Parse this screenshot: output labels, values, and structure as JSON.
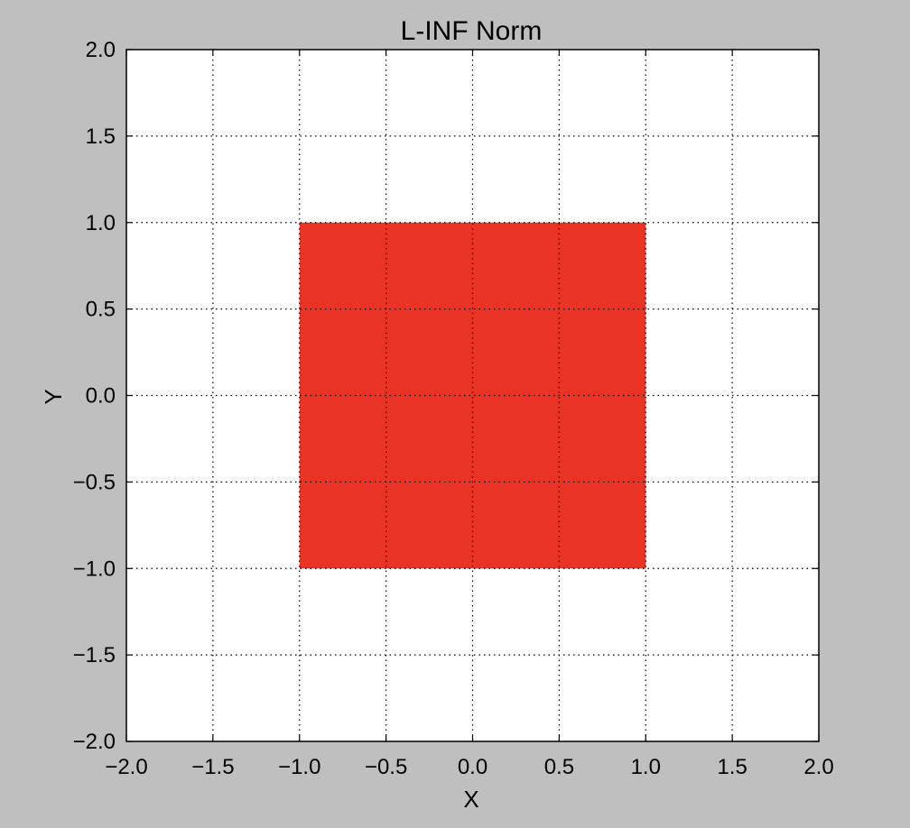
{
  "chart_data": {
    "type": "area",
    "title": "L-INF Norm",
    "xlabel": "X",
    "ylabel": "Y",
    "xlim": [
      -2.0,
      2.0
    ],
    "ylim": [
      -2.0,
      2.0
    ],
    "xticks": [
      -2.0,
      -1.5,
      -1.0,
      -0.5,
      0.0,
      0.5,
      1.0,
      1.5,
      2.0
    ],
    "yticks": [
      -2.0,
      -1.5,
      -1.0,
      -0.5,
      0.0,
      0.5,
      1.0,
      1.5,
      2.0
    ],
    "xtick_labels": [
      "−2.0",
      "−1.5",
      "−1.0",
      "−0.5",
      "0.0",
      "0.5",
      "1.0",
      "1.5",
      "2.0"
    ],
    "ytick_labels": [
      "−2.0",
      "−1.5",
      "−1.0",
      "−0.5",
      "0.0",
      "0.5",
      "1.0",
      "1.5",
      "2.0"
    ],
    "grid": true,
    "grid_style": "dotted",
    "series": [
      {
        "x": [
          -1.0,
          1.0,
          1.0,
          -1.0
        ],
        "y": [
          -1.0,
          -1.0,
          1.0,
          1.0
        ],
        "fill": "#e83325"
      }
    ]
  },
  "colors": {
    "figure_background": "#bfbfbf",
    "plot_background": "#ffffff",
    "region_fill": "#e83325"
  }
}
